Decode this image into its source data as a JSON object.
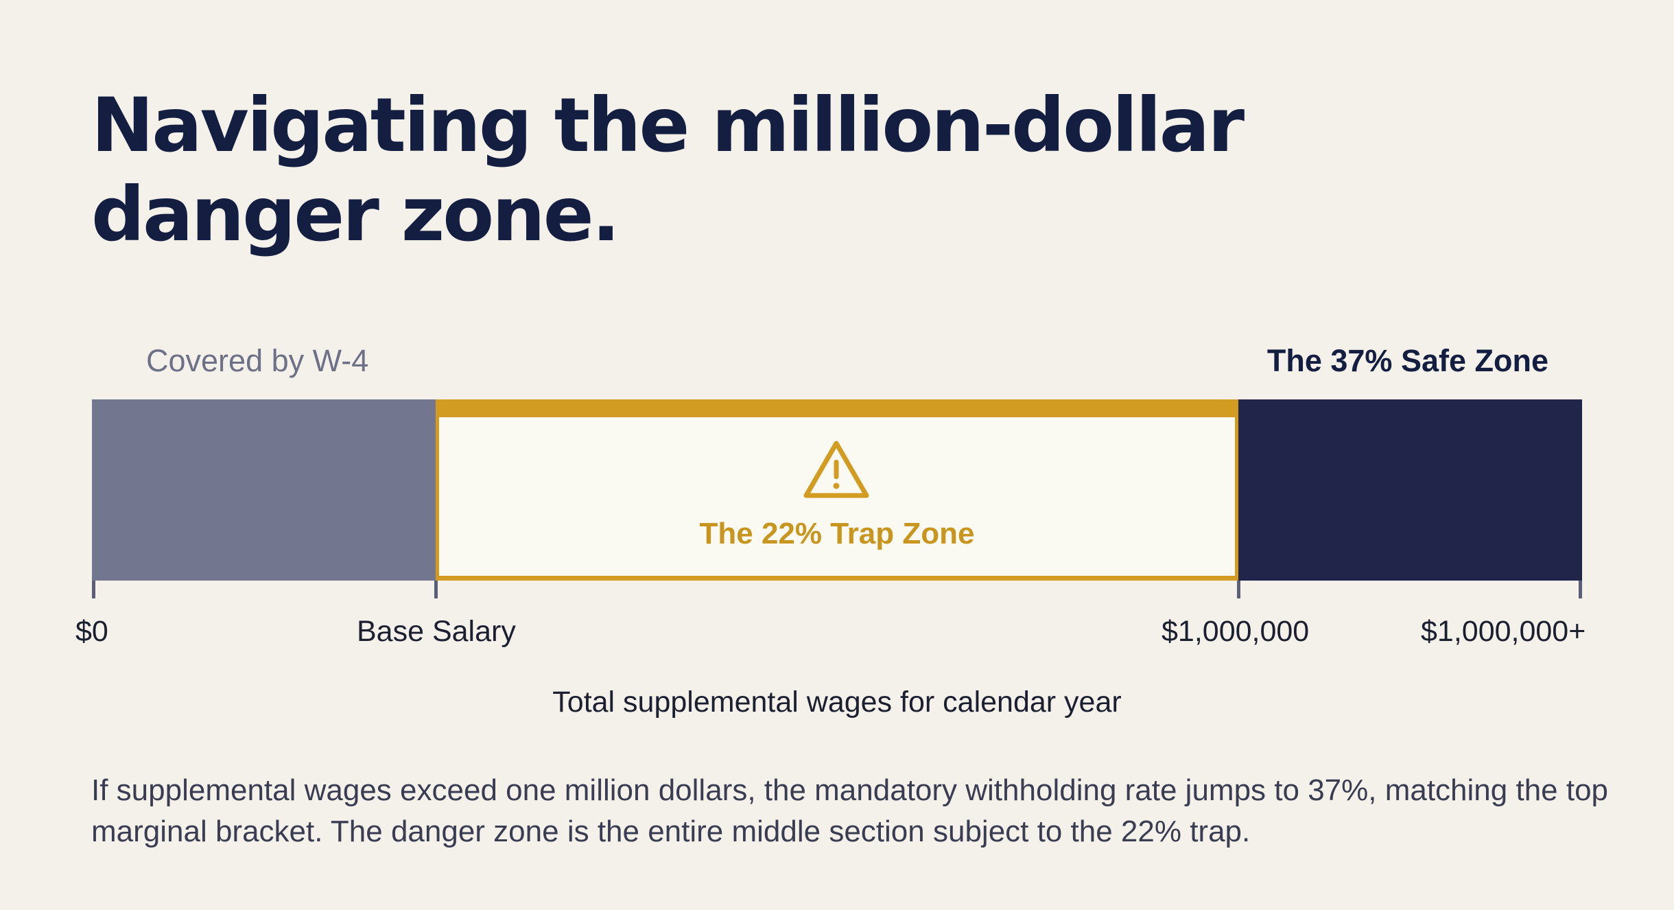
{
  "title": "Navigating the million-dollar danger zone.",
  "diagram": {
    "labels": {
      "covered": "Covered by W-4",
      "safe_zone": "The 37% Safe Zone",
      "trap_zone": "The 22% Trap Zone"
    },
    "ticks": [
      "$0",
      "Base Salary",
      "$1,000,000",
      "$1,000,000+"
    ],
    "axis_title": "Total supplemental wages for calendar year",
    "icon": "warning-triangle-icon",
    "colors": {
      "background": "#f3f1ea",
      "title": "#141e41",
      "base_segment": "#72768f",
      "trap_accent": "#d29c22",
      "trap_fill": "#fbfaf2",
      "safe_segment": "#21254a"
    }
  },
  "note": "If supplemental wages exceed one million dollars, the mandatory withholding rate jumps to 37%, matching the top marginal bracket. The danger zone is the entire middle section subject to the 22% trap."
}
